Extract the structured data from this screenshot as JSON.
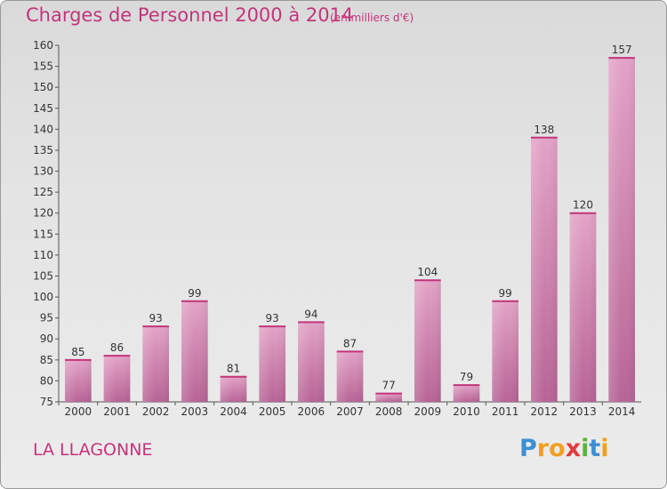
{
  "chart_data": {
    "type": "bar",
    "title": "Charges de Personnel 2000 à 2014",
    "subtitle": "(en milliers d'€)",
    "categories": [
      "2000",
      "2001",
      "2002",
      "2003",
      "2004",
      "2005",
      "2006",
      "2007",
      "2008",
      "2009",
      "2010",
      "2011",
      "2012",
      "2013",
      "2014"
    ],
    "values": [
      85,
      86,
      93,
      99,
      81,
      93,
      94,
      87,
      77,
      104,
      79,
      99,
      138,
      120,
      157
    ],
    "ylim": [
      75,
      160
    ],
    "yticks": [
      75,
      80,
      85,
      90,
      95,
      100,
      105,
      110,
      115,
      120,
      125,
      130,
      135,
      140,
      145,
      150,
      155,
      160
    ],
    "grid": false,
    "bar_color": "#d98ab3"
  },
  "commune": "LA LLAGONNE",
  "logo": {
    "letters": [
      "P",
      "r",
      "o",
      "x",
      "i",
      "t",
      "i"
    ],
    "colors": [
      "#3d8fd4",
      "#f0a020",
      "#f0a020",
      "#e03c3c",
      "#5ab43c",
      "#3d8fd4",
      "#f0a020"
    ]
  }
}
